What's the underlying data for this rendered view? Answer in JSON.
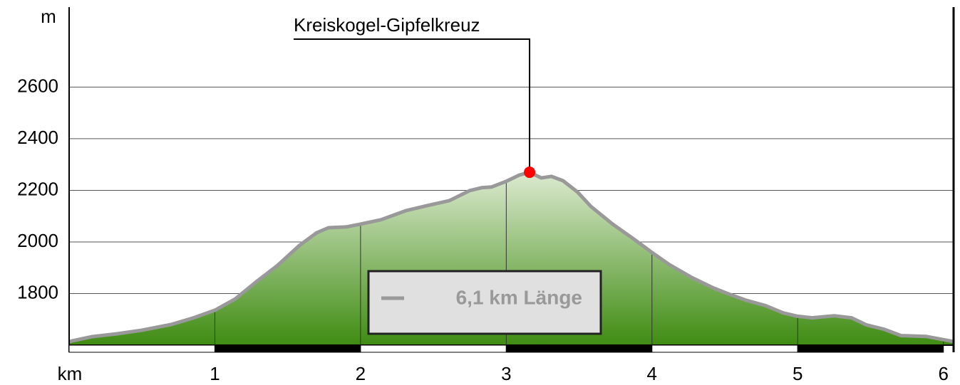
{
  "chart_data": {
    "type": "area",
    "y_axis_label": "m",
    "x_axis_label": "km",
    "xlim": [
      0,
      6.07
    ],
    "xticks": [
      1,
      2,
      3,
      4,
      5,
      6
    ],
    "ylim": [
      1600,
      2910
    ],
    "yticks": [
      1800,
      2000,
      2200,
      2400,
      2600
    ],
    "grid": true,
    "legend": "bottom-center",
    "fill_colors": [
      "#dcead0",
      "#3f8c12"
    ],
    "series": [
      {
        "name": "6,1 km Länge",
        "color": "#999999",
        "x": [
          0,
          0.16,
          0.33,
          0.5,
          0.7,
          0.85,
          1.0,
          1.14,
          1.29,
          1.43,
          1.58,
          1.7,
          1.78,
          1.9,
          2.0,
          2.14,
          2.31,
          2.46,
          2.61,
          2.75,
          2.83,
          2.9,
          3.0,
          3.09,
          3.16,
          3.24,
          3.31,
          3.39,
          3.49,
          3.58,
          3.73,
          3.88,
          4.0,
          4.12,
          4.27,
          4.42,
          4.51,
          4.64,
          4.78,
          4.9,
          5.0,
          5.1,
          5.25,
          5.37,
          5.47,
          5.59,
          5.71,
          5.88,
          6.07
        ],
        "values": [
          1614,
          1633,
          1644,
          1658,
          1680,
          1705,
          1735,
          1779,
          1848,
          1909,
          1986,
          2036,
          2055,
          2058,
          2069,
          2086,
          2121,
          2141,
          2160,
          2199,
          2210,
          2213,
          2235,
          2259,
          2270,
          2248,
          2254,
          2237,
          2193,
          2138,
          2069,
          2009,
          1959,
          1912,
          1863,
          1822,
          1802,
          1775,
          1753,
          1725,
          1712,
          1706,
          1714,
          1706,
          1679,
          1662,
          1637,
          1634,
          1614
        ]
      }
    ],
    "annotations": [
      {
        "text": "Kreiskogel-Gipfelkreuz",
        "x": 3.16,
        "y": 2270,
        "color": "#ff0000"
      }
    ]
  }
}
